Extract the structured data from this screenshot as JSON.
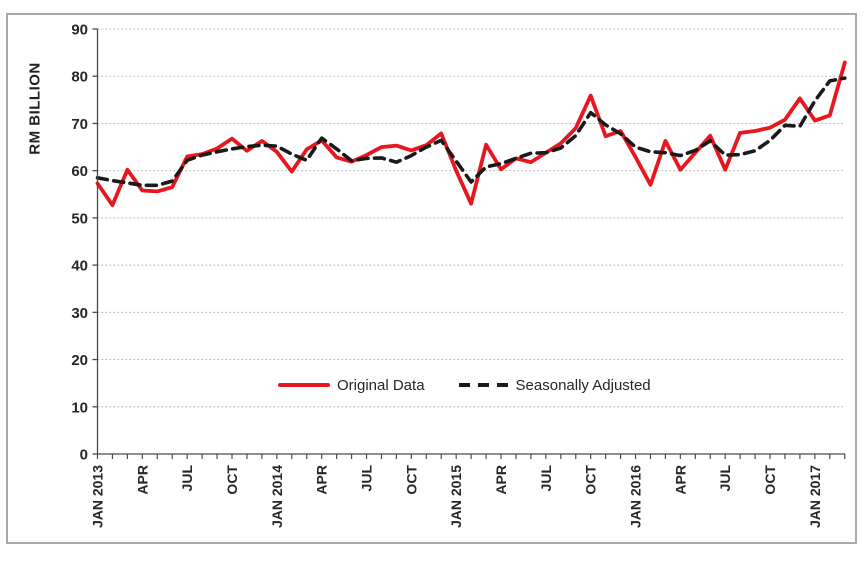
{
  "figure": {
    "title": "",
    "ylabel": "RM BILLION"
  },
  "legend": {
    "items": [
      {
        "label": "Original Data",
        "style": "solid",
        "color": "#e8161f"
      },
      {
        "label": "Seasonally Adjusted",
        "style": "dashed",
        "color": "#1a1a1a"
      }
    ],
    "position": "bottom-center-inside"
  },
  "colors": {
    "original_line": "#e8161f",
    "seasonal_line": "#1a1a1a",
    "grid": "#b0b0b0",
    "axis": "#4a4a4a",
    "tick_text": "#262626",
    "outer_border": "#a9a9a9",
    "background": "#ffffff"
  },
  "chart_data": {
    "type": "line",
    "title": "",
    "xlabel": "",
    "ylabel": "RM BILLION",
    "ylim": [
      0,
      90
    ],
    "y_ticks": [
      0,
      10,
      20,
      30,
      40,
      50,
      60,
      70,
      80,
      90
    ],
    "grid": "horizontal-dotted",
    "legend_position": "bottom-center-inside",
    "x_start": "JAN 2013",
    "x_end": "MAR 2017",
    "frequency": "monthly",
    "n_points": 51,
    "x_ticks": [
      {
        "i": 0,
        "label": "JAN 2013"
      },
      {
        "i": 3,
        "label": "APR"
      },
      {
        "i": 6,
        "label": "JUL"
      },
      {
        "i": 9,
        "label": "OCT"
      },
      {
        "i": 12,
        "label": "JAN 2014"
      },
      {
        "i": 15,
        "label": "APR"
      },
      {
        "i": 18,
        "label": "JUL"
      },
      {
        "i": 21,
        "label": "OCT"
      },
      {
        "i": 24,
        "label": "JAN 2015"
      },
      {
        "i": 27,
        "label": "APR"
      },
      {
        "i": 30,
        "label": "JUL"
      },
      {
        "i": 33,
        "label": "OCT"
      },
      {
        "i": 36,
        "label": "JAN 2016"
      },
      {
        "i": 39,
        "label": "APR"
      },
      {
        "i": 42,
        "label": "JUL"
      },
      {
        "i": 45,
        "label": "OCT"
      },
      {
        "i": 48,
        "label": "JAN 2017"
      }
    ],
    "series": [
      {
        "name": "Original Data",
        "color": "#e8161f",
        "style": "solid",
        "values": [
          57.3,
          52.7,
          60.2,
          55.8,
          55.6,
          56.5,
          63.0,
          63.5,
          64.7,
          66.8,
          64.2,
          66.3,
          64.0,
          59.8,
          64.5,
          66.4,
          62.8,
          61.9,
          63.3,
          65.0,
          65.3,
          64.3,
          65.4,
          67.9,
          60.0,
          53.0,
          65.5,
          60.3,
          62.6,
          61.8,
          63.8,
          65.8,
          69.0,
          75.9,
          67.3,
          68.4,
          62.9,
          57.0,
          66.3,
          60.2,
          63.8,
          67.4,
          60.2,
          68.0,
          68.4,
          69.1,
          70.8,
          75.3,
          70.6,
          71.7,
          82.9
        ]
      },
      {
        "name": "Seasonally Adjusted",
        "color": "#1a1a1a",
        "style": "dashed",
        "values": [
          58.5,
          57.9,
          57.4,
          56.9,
          56.9,
          57.8,
          62.2,
          63.3,
          64.0,
          64.6,
          65.1,
          65.4,
          65.2,
          63.5,
          62.2,
          66.9,
          64.6,
          62.1,
          62.6,
          62.7,
          61.8,
          63.2,
          65.0,
          66.4,
          62.0,
          57.6,
          60.8,
          61.5,
          62.6,
          63.7,
          63.8,
          64.8,
          67.4,
          72.3,
          69.7,
          67.8,
          65.0,
          64.0,
          63.8,
          63.2,
          64.3,
          66.3,
          63.3,
          63.4,
          64.2,
          66.4,
          69.6,
          69.4,
          74.8,
          79.0,
          79.6
        ]
      }
    ]
  }
}
